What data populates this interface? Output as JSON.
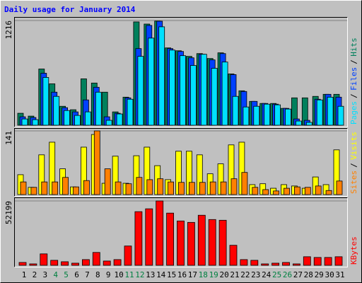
{
  "chart_data": [
    {
      "type": "bar",
      "title": "Daily usage for January 2014",
      "separator": "/",
      "ylim": [
        0,
        1216
      ],
      "yticks": [
        1216
      ],
      "series": [
        {
          "name": "Hits",
          "color": "#00805c",
          "values": [
            139,
            106,
            653,
            481,
            220,
            180,
            539,
            490,
            384,
            155,
            326,
            1200,
            1175,
            1210,
            898,
            865,
            800,
            832,
            775,
            841,
            596,
            400,
            277,
            253,
            253,
            196,
            318,
            318,
            335,
            359,
            359
          ]
        },
        {
          "name": "Files",
          "color": "#0040ff",
          "values": [
            98,
            90,
            604,
            384,
            204,
            155,
            294,
            441,
            98,
            139,
            318,
            890,
            1159,
            1208,
            890,
            857,
            783,
            824,
            759,
            832,
            588,
            392,
            277,
            253,
            245,
            196,
            73,
            57,
            302,
            359,
            326
          ]
        },
        {
          "name": "Pages",
          "color": "#00e0ff",
          "values": [
            73,
            65,
            555,
            335,
            171,
            114,
            155,
            384,
            57,
            131,
            302,
            800,
            1012,
            1143,
            873,
            808,
            694,
            824,
            661,
            734,
            335,
            212,
            220,
            245,
            237,
            188,
            49,
            33,
            294,
            326,
            220
          ]
        }
      ]
    },
    {
      "type": "bar",
      "ylim": [
        0,
        141
      ],
      "yticks": [
        141
      ],
      "series": [
        {
          "name": "Visits",
          "color": "#ffff00",
          "values": [
            44,
            16,
            88,
            116,
            57,
            17,
            105,
            133,
            25,
            85,
            25,
            86,
            105,
            64,
            33,
            96,
            96,
            88,
            46,
            68,
            110,
            116,
            22,
            24,
            14,
            22,
            19,
            14,
            39,
            22,
            99
          ]
        },
        {
          "name": "Sites",
          "color": "#ff8000",
          "values": [
            28,
            16,
            28,
            28,
            38,
            17,
            31,
            141,
            57,
            28,
            24,
            38,
            33,
            35,
            28,
            27,
            27,
            27,
            28,
            28,
            35,
            49,
            16,
            11,
            8,
            14,
            17,
            16,
            19,
            9,
            30
          ]
        }
      ]
    },
    {
      "type": "bar",
      "ylim": [
        0,
        52199
      ],
      "yticks": [
        52199
      ],
      "categories": [
        "1",
        "2",
        "3",
        "4",
        "5",
        "6",
        "7",
        "8",
        "9",
        "10",
        "11",
        "12",
        "13",
        "14",
        "15",
        "16",
        "17",
        "18",
        "19",
        "20",
        "21",
        "22",
        "23",
        "24",
        "25",
        "26",
        "27",
        "28",
        "29",
        "30",
        "31"
      ],
      "weekend_days": [
        "4",
        "5",
        "11",
        "12",
        "18",
        "19",
        "25",
        "26"
      ],
      "weekend_color": "#008040",
      "series": [
        {
          "name": "KBytes",
          "color": "#ff0000",
          "values": [
            2320,
            1160,
            9280,
            4060,
            2900,
            1740,
            4640,
            10440,
            3480,
            4640,
            15660,
            43500,
            45820,
            52199,
            42340,
            35960,
            34800,
            40600,
            37120,
            36540,
            16240,
            4640,
            4060,
            1160,
            1740,
            2320,
            1160,
            6960,
            6380,
            6380,
            6960
          ]
        }
      ]
    }
  ]
}
